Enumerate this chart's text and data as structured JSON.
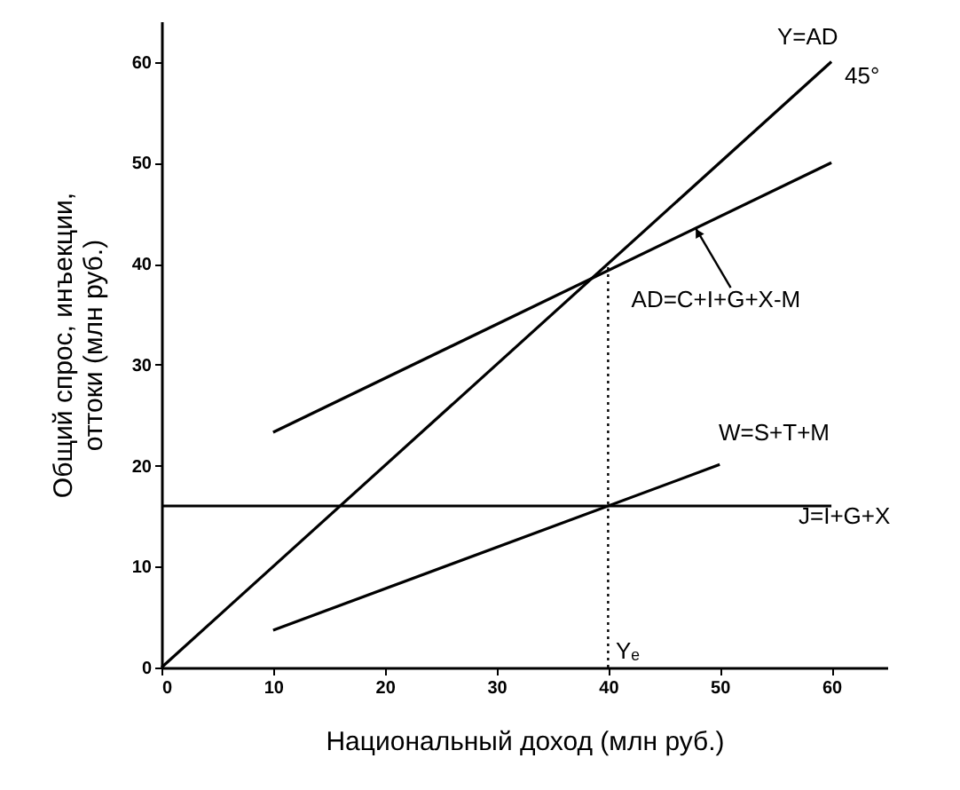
{
  "chart_data": {
    "type": "line",
    "xlabel": "Национальный доход (млн руб.)",
    "ylabel": "Общий спрос, инъекции,\nоттоки (млн руб.)",
    "xlim": [
      0,
      65
    ],
    "ylim": [
      0,
      64
    ],
    "xticks": [
      0,
      10,
      20,
      30,
      40,
      50,
      60
    ],
    "yticks": [
      0,
      10,
      20,
      30,
      40,
      50,
      60
    ],
    "grid": false,
    "marker": "none",
    "line_style": "solid",
    "series": [
      {
        "color": "#000000",
        "x": [
          0,
          60
        ],
        "values": [
          0,
          60
        ]
      },
      {
        "color": "#000000",
        "x": [
          10,
          60
        ],
        "values": [
          23.3,
          50
        ]
      },
      {
        "color": "#000000",
        "x": [
          10,
          50
        ],
        "values": [
          3.7,
          20.1
        ]
      },
      {
        "color": "#000000",
        "x": [
          0,
          60
        ],
        "values": [
          16,
          16
        ]
      },
      {
        "color": "#000000",
        "x": [
          40,
          40
        ],
        "values": [
          0,
          40
        ],
        "line_style": "dotted"
      }
    ],
    "annotations": [
      "Y=AD",
      "45°",
      {
        "text": "AD=C+I+G+X-M",
        "x": 47.8,
        "y": 43.6
      },
      "W=S+T+M",
      "J=I+G+X",
      "Yₑ"
    ]
  }
}
